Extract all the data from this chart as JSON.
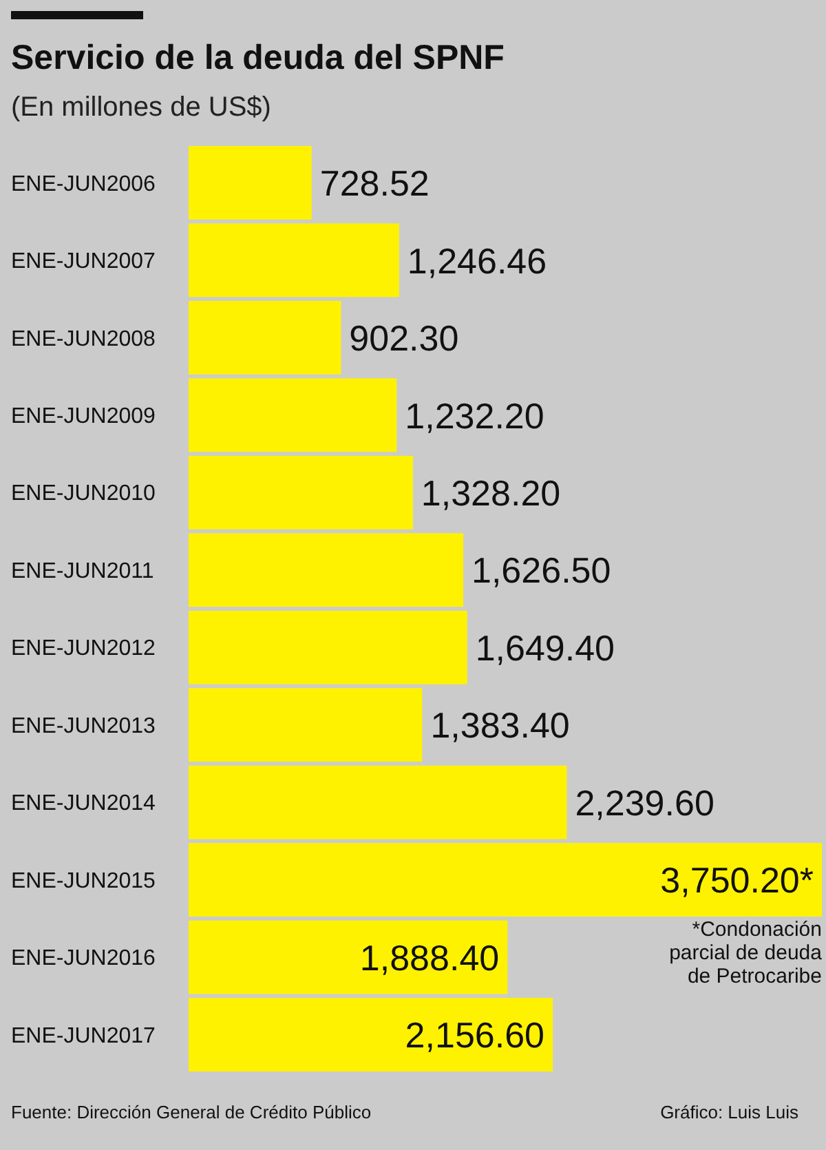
{
  "chart_data": {
    "type": "bar",
    "orientation": "horizontal",
    "title": "Servicio de la deuda del SPNF",
    "subtitle": "(En millones de US$)",
    "categories": [
      "ENE-JUN2006",
      "ENE-JUN2007",
      "ENE-JUN2008",
      "ENE-JUN2009",
      "ENE-JUN2010",
      "ENE-JUN2011",
      "ENE-JUN2012",
      "ENE-JUN2013",
      "ENE-JUN2014",
      "ENE-JUN2015",
      "ENE-JUN2016",
      "ENE-JUN2017"
    ],
    "values": [
      728.52,
      1246.46,
      902.3,
      1232.2,
      1328.2,
      1626.5,
      1649.4,
      1383.4,
      2239.6,
      3750.2,
      1888.4,
      2156.6
    ],
    "value_labels": [
      "728.52",
      "1,246.46",
      "902.30",
      "1,232.20",
      "1,328.20",
      "1,626.50",
      "1,649.40",
      "1,383.40",
      "2,239.60",
      "3,750.20*",
      "1,888.40",
      "2,156.60"
    ],
    "color": "#fff200",
    "tick_labels": "y",
    "annotations": [
      {
        "text": "*Condonación parcial de deuda de Petrocaribe",
        "x": 3750.2,
        "y": "ENE-JUN2015"
      },
      "Fuente: Dirección General de Crédito Público",
      "Gráfico: Luis Luis"
    ]
  }
}
